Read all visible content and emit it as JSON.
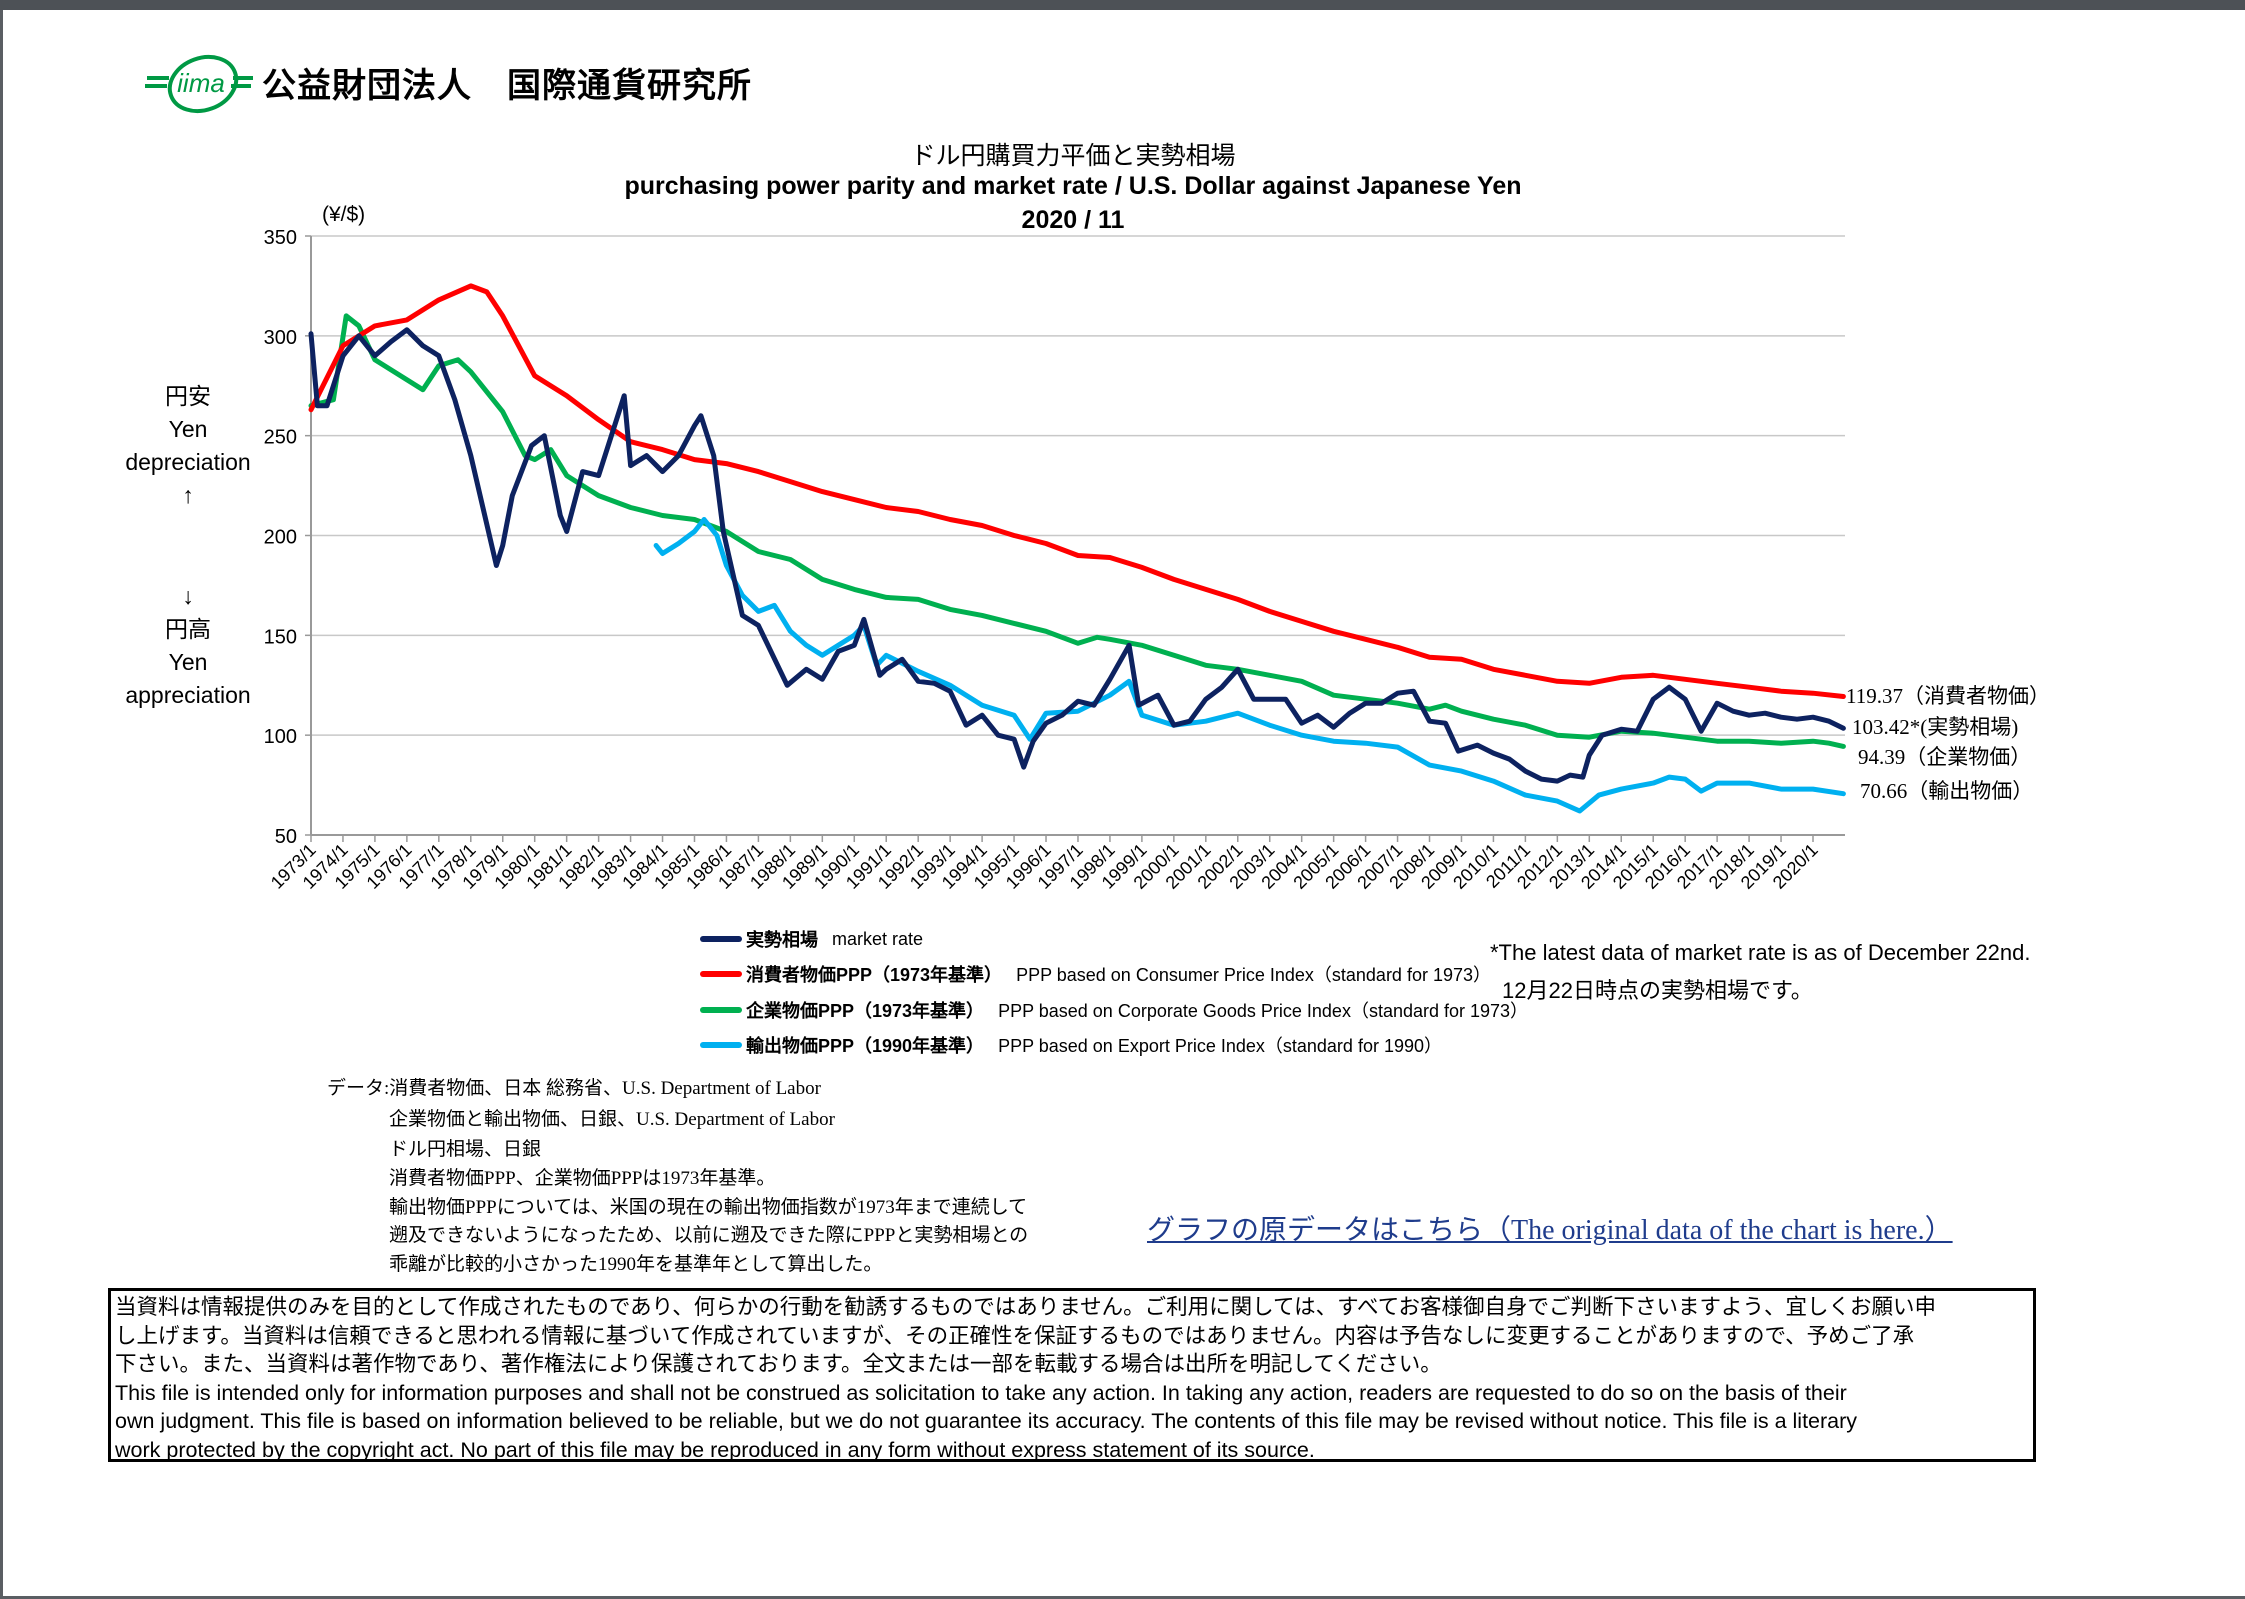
{
  "header": {
    "logo_text": "iima",
    "organization": "公益財団法人　国際通貨研究所"
  },
  "colors": {
    "market": "#0d2260",
    "cpi": "#ff0000",
    "cgpi": "#00b050",
    "export": "#00b0f0",
    "link": "#1f3c8c"
  },
  "side_labels": {
    "weak_jp": "円安",
    "weak_en1": "Yen",
    "weak_en2": "depreciation",
    "up_arrow": "↑",
    "down_arrow": "↓",
    "strong_jp": "円高",
    "strong_en1": "Yen",
    "strong_en2": "appreciation"
  },
  "chart_data": {
    "type": "line",
    "title": "ドル円購買力平価と実勢相場",
    "subtitle": "purchasing power parity and market rate / U.S. Dollar against Japanese Yen",
    "date": "2020 / 11",
    "ylabel": "(¥/$)",
    "xlabel": "",
    "ylim": [
      50,
      350
    ],
    "xlim": [
      1973,
      2021
    ],
    "yticks": [
      "50",
      "100",
      "150",
      "200",
      "250",
      "300",
      "350"
    ],
    "xticks": [
      "1973/1",
      "1974/1",
      "1975/1",
      "1976/1",
      "1977/1",
      "1978/1",
      "1979/1",
      "1980/1",
      "1981/1",
      "1982/1",
      "1983/1",
      "1984/1",
      "1985/1",
      "1986/1",
      "1987/1",
      "1988/1",
      "1989/1",
      "1990/1",
      "1991/1",
      "1992/1",
      "1993/1",
      "1994/1",
      "1995/1",
      "1996/1",
      "1997/1",
      "1998/1",
      "1999/1",
      "2000/1",
      "2001/1",
      "2002/1",
      "2003/1",
      "2004/1",
      "2005/1",
      "2006/1",
      "2007/1",
      "2008/1",
      "2009/1",
      "2010/1",
      "2011/1",
      "2012/1",
      "2013/1",
      "2014/1",
      "2015/1",
      "2016/1",
      "2017/1",
      "2018/1",
      "2019/1",
      "2020/1"
    ],
    "grid": true,
    "legend_placement": "bottom",
    "series": [
      {
        "key": "market",
        "name_jp": "実勢相場",
        "name_en": "market rate",
        "end_label": "103.42*(実勢相場)",
        "x": [
          1973.0,
          1973.2,
          1973.5,
          1974.0,
          1974.5,
          1975.0,
          1975.5,
          1976.0,
          1976.5,
          1977.0,
          1977.5,
          1978.0,
          1978.8,
          1979.0,
          1979.3,
          1979.9,
          1980.3,
          1980.8,
          1981.0,
          1981.5,
          1982.0,
          1982.8,
          1983.0,
          1983.5,
          1984.0,
          1984.5,
          1985.0,
          1985.2,
          1985.6,
          1985.9,
          1986.5,
          1987.0,
          1987.9,
          1988.5,
          1989.0,
          1989.5,
          1990.0,
          1990.3,
          1990.8,
          1991.0,
          1991.5,
          1992.0,
          1992.5,
          1993.0,
          1993.5,
          1994.0,
          1994.5,
          1995.0,
          1995.3,
          1995.6,
          1996.0,
          1996.5,
          1997.0,
          1997.5,
          1998.0,
          1998.6,
          1998.9,
          1999.5,
          2000.0,
          2000.5,
          2001.0,
          2001.5,
          2002.0,
          2002.5,
          2003.0,
          2003.5,
          2004.0,
          2004.5,
          2005.0,
          2005.5,
          2006.0,
          2006.5,
          2007.0,
          2007.5,
          2008.0,
          2008.5,
          2008.9,
          2009.5,
          2010.0,
          2010.5,
          2011.0,
          2011.5,
          2012.0,
          2012.4,
          2012.8,
          2013.0,
          2013.4,
          2014.0,
          2014.5,
          2015.0,
          2015.5,
          2016.0,
          2016.5,
          2017.0,
          2017.5,
          2018.0,
          2018.5,
          2019.0,
          2019.5,
          2020.0,
          2020.5,
          2020.95
        ],
        "y": [
          301,
          265,
          265,
          290,
          300,
          290,
          297,
          303,
          295,
          290,
          268,
          240,
          185,
          195,
          220,
          245,
          250,
          210,
          202,
          232,
          230,
          270,
          235,
          240,
          232,
          240,
          255,
          260,
          240,
          202,
          160,
          155,
          125,
          133,
          128,
          142,
          145,
          158,
          130,
          133,
          138,
          127,
          126,
          122,
          105,
          110,
          100,
          98,
          84,
          97,
          106,
          110,
          117,
          115,
          128,
          145,
          115,
          120,
          105,
          107,
          118,
          124,
          133,
          118,
          118,
          118,
          106,
          110,
          104,
          111,
          116,
          116,
          121,
          122,
          107,
          106,
          92,
          95,
          91,
          88,
          82,
          78,
          77,
          80,
          79,
          90,
          100,
          103,
          102,
          118,
          124,
          118,
          102,
          116,
          112,
          110,
          111,
          109,
          108,
          109,
          107,
          103.42
        ]
      },
      {
        "key": "cpi",
        "name_jp": "消費者物価PPP（1973年基準）",
        "name_en": "PPP based on Consumer Price Index（standard for 1973）",
        "end_label": "119.37（消費者物価）",
        "x": [
          1973,
          1974,
          1975,
          1976,
          1977,
          1978,
          1978.5,
          1979,
          1980,
          1981,
          1982,
          1983,
          1984,
          1985,
          1986,
          1987,
          1988,
          1989,
          1990,
          1991,
          1992,
          1993,
          1994,
          1995,
          1996,
          1997,
          1998,
          1999,
          2000,
          2001,
          2002,
          2003,
          2004,
          2005,
          2006,
          2007,
          2008,
          2009,
          2010,
          2011,
          2012,
          2013,
          2014,
          2015,
          2016,
          2017,
          2018,
          2019,
          2020,
          2020.95
        ],
        "y": [
          263,
          295,
          305,
          308,
          318,
          325,
          322,
          310,
          280,
          270,
          258,
          247,
          243,
          238,
          236,
          232,
          227,
          222,
          218,
          214,
          212,
          208,
          205,
          200,
          196,
          190,
          189,
          184,
          178,
          173,
          168,
          162,
          157,
          152,
          148,
          144,
          139,
          138,
          133,
          130,
          127,
          126,
          129,
          130,
          128,
          126,
          124,
          122,
          121,
          119.37
        ]
      },
      {
        "key": "cgpi",
        "name_jp": "企業物価PPP（1973年基準）",
        "name_en": "PPP based on Corporate Goods Price Index（standard for 1973）",
        "end_label": "94.39（企業物価）",
        "x": [
          1973,
          1973.7,
          1974.1,
          1974.5,
          1975,
          1976,
          1976.5,
          1977,
          1977.6,
          1978,
          1979,
          1979.7,
          1980,
          1980.5,
          1981,
          1982,
          1983,
          1984,
          1985,
          1986,
          1987,
          1988,
          1989,
          1990,
          1991,
          1992,
          1993,
          1994,
          1995,
          1996,
          1997,
          1997.6,
          1998,
          1999,
          2000,
          2001,
          2002,
          2003,
          2004,
          2005,
          2006,
          2007,
          2008,
          2008.5,
          2009,
          2010,
          2011,
          2012,
          2013,
          2014,
          2015,
          2016,
          2017,
          2018,
          2019,
          2020,
          2020.5,
          2020.95
        ],
        "y": [
          265,
          268,
          310,
          305,
          288,
          278,
          273,
          285,
          288,
          282,
          262,
          240,
          238,
          243,
          230,
          220,
          214,
          210,
          208,
          202,
          192,
          188,
          178,
          173,
          169,
          168,
          163,
          160,
          156,
          152,
          146,
          149,
          148,
          145,
          140,
          135,
          133,
          130,
          127,
          120,
          118,
          116,
          113,
          115,
          112,
          108,
          105,
          100,
          99,
          102,
          101,
          99,
          97,
          97,
          96,
          97,
          96,
          94.39
        ]
      },
      {
        "key": "export",
        "name_jp": "輸出物価PPP（1990年基準）",
        "name_en": "PPP based on Export Price Index（standard for 1990）",
        "end_label": "70.66（輸出物価）",
        "x": [
          1983.8,
          1984.0,
          1984.5,
          1985.0,
          1985.3,
          1985.7,
          1986.0,
          1986.5,
          1987.0,
          1987.5,
          1988,
          1988.5,
          1989,
          1989.5,
          1990.0,
          1990.3,
          1990.7,
          1991,
          1992,
          1993,
          1994,
          1995,
          1995.5,
          1996,
          1997,
          1998,
          1998.6,
          1999,
          2000,
          2001,
          2002,
          2003,
          2004,
          2005,
          2006,
          2007,
          2008,
          2009,
          2010,
          2011,
          2012,
          2012.7,
          2013.3,
          2014,
          2015,
          2015.5,
          2016,
          2016.5,
          2017,
          2018,
          2019,
          2020,
          2020.95
        ],
        "y": [
          195,
          191,
          196,
          202,
          208,
          200,
          185,
          170,
          162,
          165,
          152,
          145,
          140,
          145,
          150,
          155,
          135,
          140,
          132,
          125,
          115,
          110,
          98,
          111,
          112,
          120,
          127,
          110,
          105,
          107,
          111,
          105,
          100,
          97,
          96,
          94,
          85,
          82,
          77,
          70,
          67,
          62,
          70,
          73,
          76,
          79,
          78,
          72,
          76,
          76,
          73,
          73,
          70.66
        ]
      }
    ]
  },
  "notes": {
    "latest_en": "*The latest data of market rate is as of December 22nd.",
    "latest_jp": "12月22日時点の実勢相場です。"
  },
  "sources": [
    "データ:消費者物価、日本 総務省、U.S. Department of Labor",
    "企業物価と輸出物価、日銀、U.S. Department of Labor",
    "ドル円相場、日銀",
    "消費者物価PPP、企業物価PPPは1973年基準。",
    "輸出物価PPPについては、米国の現在の輸出物価指数が1973年まで連続して",
    "遡及できないようになったため、以前に遡及できた際にPPPと実勢相場との",
    "乖離が比較的小さかった1990年を基準年として算出した。"
  ],
  "link_text": "グラフの原データはこちら（The original data of the chart is here.）",
  "disclaimer": [
    "当資料は情報提供のみを目的として作成されたものであり、何らかの行動を勧誘するものではありません。ご利用に関しては、すべてお客様御自身でご判断下さいますよう、宜しくお願い申",
    "し上げます。当資料は信頼できると思われる情報に基づいて作成されていますが、その正確性を保証するものではありません。内容は予告なしに変更することがありますので、予めご了承",
    "下さい。また、当資料は著作物であり、著作権法により保護されております。全文または一部を転載する場合は出所を明記してください。",
    "This file is intended only for information purposes and shall not be construed as solicitation to take any action. In taking any action, readers are requested to do so on the basis of their",
    "own judgment. This file is based on information believed to be reliable, but we do not guarantee its accuracy. The contents of this file may be revised without notice. This file is a literary",
    "work protected by the copyright act. No part of this file may be reproduced in any form without express statement of its source."
  ]
}
